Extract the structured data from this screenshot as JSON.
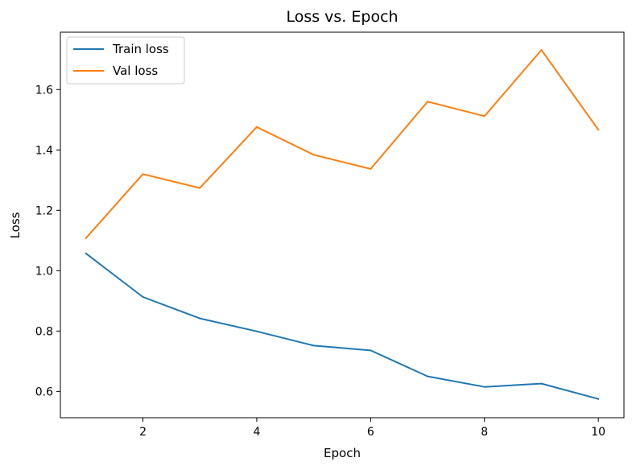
{
  "chart_data": {
    "type": "line",
    "title": "Loss vs. Epoch",
    "xlabel": "Epoch",
    "ylabel": "Loss",
    "x": [
      1,
      2,
      3,
      4,
      5,
      6,
      7,
      8,
      9,
      10
    ],
    "xlim": [
      0.55,
      10.45
    ],
    "ylim": [
      0.513,
      1.79
    ],
    "xticks": [
      2,
      4,
      6,
      8,
      10
    ],
    "yticks": [
      0.6,
      0.8,
      1.0,
      1.2,
      1.4,
      1.6
    ],
    "xtick_labels": [
      "2",
      "4",
      "6",
      "8",
      "10"
    ],
    "ytick_labels": [
      "0.6",
      "0.8",
      "1.0",
      "1.2",
      "1.4",
      "1.6"
    ],
    "grid": false,
    "legend_position": "upper-left",
    "series": [
      {
        "name": "Train loss",
        "color": "#1f77b4",
        "values": [
          1.057,
          0.913,
          0.842,
          0.799,
          0.752,
          0.736,
          0.65,
          0.615,
          0.626,
          0.575
        ]
      },
      {
        "name": "Val loss",
        "color": "#ff7f0e",
        "values": [
          1.108,
          1.32,
          1.274,
          1.476,
          1.384,
          1.337,
          1.56,
          1.512,
          1.731,
          1.467
        ]
      }
    ]
  }
}
